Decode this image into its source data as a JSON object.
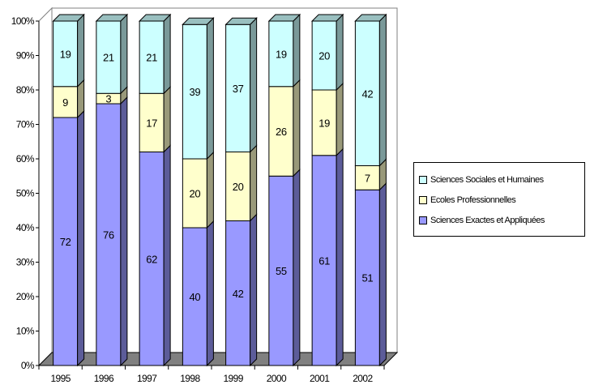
{
  "chart_data": {
    "type": "bar",
    "stacked": "percent",
    "three_d": true,
    "categories": [
      "1995",
      "1996",
      "1997",
      "1998",
      "1999",
      "2000",
      "2001",
      "2002"
    ],
    "series": [
      {
        "name": "Sciences Exactes et Appliquées",
        "color": "#9999ff",
        "values": [
          72,
          76,
          62,
          40,
          42,
          55,
          61,
          51
        ]
      },
      {
        "name": "Ecoles Professionnelles",
        "color": "#ffffcc",
        "values": [
          9,
          3,
          17,
          20,
          20,
          26,
          19,
          7
        ]
      },
      {
        "name": "Sciences Sociales et Humaines",
        "color": "#ccffff",
        "values": [
          19,
          21,
          21,
          39,
          37,
          19,
          20,
          42
        ]
      }
    ],
    "y_ticks": [
      "0%",
      "10%",
      "20%",
      "30%",
      "40%",
      "50%",
      "60%",
      "70%",
      "80%",
      "90%",
      "100%"
    ],
    "ylim": [
      0,
      100
    ],
    "grid": false,
    "legend_position": "right",
    "floor_color": "#808080"
  }
}
